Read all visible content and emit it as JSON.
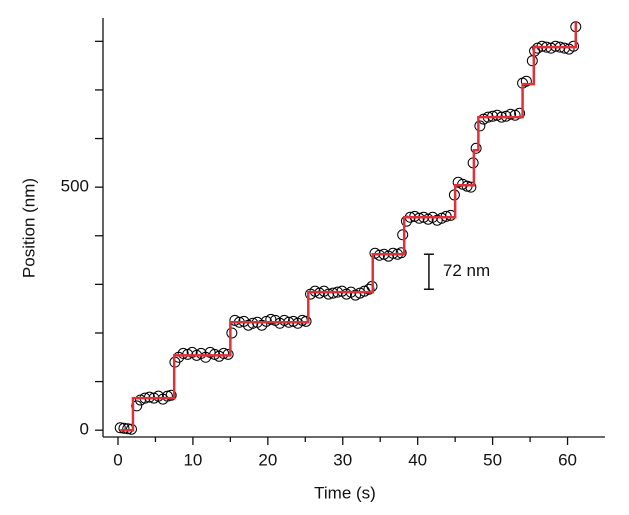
{
  "chart_data": {
    "type": "scatter",
    "xlabel": "Time (s)",
    "ylabel": "Position (nm)",
    "xlim": [
      -2,
      65
    ],
    "ylim": [
      -14,
      848
    ],
    "xticks": [
      0,
      10,
      20,
      30,
      40,
      50,
      60
    ],
    "x_minor_ticks": [
      5,
      15,
      25,
      35,
      45,
      55
    ],
    "yticks": [
      0,
      500
    ],
    "y_minor_ticks": [
      100,
      200,
      300,
      400,
      600,
      700,
      800
    ],
    "series": [
      {
        "kind": "points",
        "color": "#000000",
        "x": [
          0.3,
          0.8,
          1.3,
          1.8,
          2.5,
          3,
          3.6,
          4.2,
          4.8,
          5.4,
          6,
          6.6,
          7.1,
          7.6,
          8.1,
          8.7,
          9.3,
          9.9,
          10.5,
          11.1,
          11.7,
          12.3,
          12.9,
          13.5,
          14.1,
          14.7,
          15.2,
          15.6,
          16.2,
          16.8,
          17.4,
          18,
          18.6,
          19.2,
          19.8,
          20.4,
          21,
          21.6,
          22.2,
          22.8,
          23.4,
          24,
          24.6,
          25.1,
          25.7,
          26.3,
          26.9,
          27.5,
          28.1,
          28.7,
          29.3,
          29.9,
          30.5,
          31.1,
          31.7,
          32.3,
          32.9,
          33.5,
          33.9,
          34.3,
          34.9,
          35.5,
          36.1,
          36.7,
          37.3,
          37.8,
          38,
          38.5,
          39,
          39.6,
          40.2,
          40.8,
          41.4,
          42,
          42.6,
          43.2,
          43.8,
          44.4,
          44.9,
          45.4,
          46,
          46.6,
          47.1,
          47.4,
          47.8,
          48.3,
          48.8,
          49.4,
          50,
          50.6,
          51.2,
          51.8,
          52.4,
          53,
          53.6,
          54,
          54.5,
          55.3,
          55.6,
          56,
          56.6,
          57.2,
          57.8,
          58.4,
          59,
          59.6,
          60.2,
          60.8,
          61.1
        ],
        "values": [
          5,
          4,
          3,
          2,
          50,
          62,
          66,
          68,
          66,
          70,
          64,
          70,
          72,
          140,
          150,
          158,
          156,
          160,
          154,
          158,
          150,
          160,
          156,
          152,
          158,
          156,
          200,
          226,
          222,
          224,
          216,
          220,
          222,
          216,
          224,
          228,
          226,
          220,
          226,
          222,
          224,
          220,
          226,
          224,
          280,
          286,
          282,
          286,
          280,
          282,
          284,
          286,
          280,
          284,
          278,
          282,
          286,
          290,
          296,
          364,
          360,
          362,
          358,
          364,
          362,
          365,
          402,
          430,
          438,
          440,
          436,
          438,
          434,
          438,
          432,
          436,
          440,
          442,
          484,
          510,
          506,
          502,
          500,
          550,
          580,
          626,
          640,
          644,
          646,
          648,
          644,
          646,
          650,
          648,
          652,
          714,
          718,
          760,
          780,
          786,
          790,
          788,
          786,
          790,
          788,
          786,
          784,
          790,
          830
        ]
      },
      {
        "kind": "steps",
        "color": "#e0303a",
        "x": [
          0.3,
          2,
          2,
          7.5,
          7.5,
          15,
          15,
          25.4,
          25.4,
          34,
          34,
          38.2,
          38.2,
          45,
          45,
          47.5,
          47.5,
          48.1,
          48.1,
          54,
          54,
          55.5,
          55.5,
          61.1,
          61.1
        ],
        "values": [
          0,
          0,
          66,
          66,
          154,
          154,
          222,
          222,
          284,
          284,
          362,
          362,
          438,
          438,
          504,
          504,
          576,
          576,
          644,
          644,
          712,
          712,
          788,
          788,
          840
        ]
      }
    ],
    "scale_bar": {
      "label": "72 nm",
      "length": 72,
      "x": 41.5,
      "y": 290
    }
  }
}
